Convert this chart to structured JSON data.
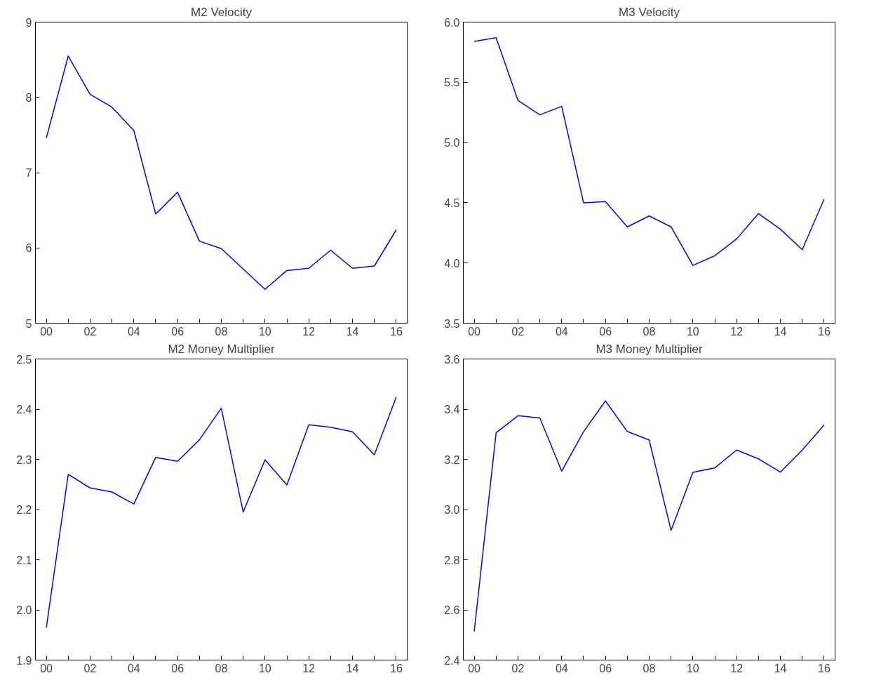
{
  "chart_data": [
    {
      "type": "line",
      "title": "M2 Velocity",
      "x": [
        0,
        1,
        2,
        3,
        4,
        5,
        6,
        7,
        8,
        9,
        10,
        11,
        12,
        13,
        14,
        15,
        16
      ],
      "series": [
        {
          "color": "#0000ff",
          "values": [
            7.46,
            8.55,
            8.04,
            7.87,
            7.56,
            6.45,
            6.74,
            6.09,
            5.99,
            5.72,
            5.45,
            5.7,
            5.73,
            5.97,
            5.73,
            5.76,
            6.24
          ]
        }
      ],
      "xlim": [
        -0.5,
        16.5
      ],
      "xticks": [
        {
          "value": 0,
          "label": "00"
        },
        {
          "value": 1,
          "label": null
        },
        {
          "value": 2,
          "label": "02"
        },
        {
          "value": 3,
          "label": null
        },
        {
          "value": 4,
          "label": "04"
        },
        {
          "value": 5,
          "label": null
        },
        {
          "value": 6,
          "label": "06"
        },
        {
          "value": 7,
          "label": null
        },
        {
          "value": 8,
          "label": "08"
        },
        {
          "value": 9,
          "label": null
        },
        {
          "value": 10,
          "label": "10"
        },
        {
          "value": 11,
          "label": null
        },
        {
          "value": 12,
          "label": "12"
        },
        {
          "value": 13,
          "label": null
        },
        {
          "value": 14,
          "label": "14"
        },
        {
          "value": 15,
          "label": null
        },
        {
          "value": 16,
          "label": "16"
        }
      ],
      "ylim": [
        5,
        9
      ],
      "yticks": [
        5,
        6,
        7,
        8,
        9
      ],
      "grid": false
    },
    {
      "type": "line",
      "title": "M3 Velocity",
      "x": [
        0,
        1,
        2,
        3,
        4,
        5,
        6,
        7,
        8,
        9,
        10,
        11,
        12,
        13,
        14,
        15,
        16
      ],
      "series": [
        {
          "color": "#0000ff",
          "values": [
            5.84,
            5.87,
            5.35,
            5.23,
            5.3,
            4.5,
            4.51,
            4.3,
            4.39,
            4.3,
            3.98,
            4.06,
            4.2,
            4.41,
            4.28,
            4.11,
            4.53
          ]
        }
      ],
      "xlim": [
        -0.5,
        16.5
      ],
      "xticks": [
        {
          "value": 0,
          "label": "00"
        },
        {
          "value": 1,
          "label": null
        },
        {
          "value": 2,
          "label": "02"
        },
        {
          "value": 3,
          "label": null
        },
        {
          "value": 4,
          "label": "04"
        },
        {
          "value": 5,
          "label": null
        },
        {
          "value": 6,
          "label": "06"
        },
        {
          "value": 7,
          "label": null
        },
        {
          "value": 8,
          "label": "08"
        },
        {
          "value": 9,
          "label": null
        },
        {
          "value": 10,
          "label": "10"
        },
        {
          "value": 11,
          "label": null
        },
        {
          "value": 12,
          "label": "12"
        },
        {
          "value": 13,
          "label": null
        },
        {
          "value": 14,
          "label": "14"
        },
        {
          "value": 15,
          "label": null
        },
        {
          "value": 16,
          "label": "16"
        }
      ],
      "ylim": [
        3.5,
        6.0
      ],
      "yticks": [
        {
          "value": 3.5,
          "label": "3.5"
        },
        {
          "value": 4.0,
          "label": "4.0"
        },
        {
          "value": 4.5,
          "label": "4.5"
        },
        {
          "value": 5.0,
          "label": "5.0"
        },
        {
          "value": 5.5,
          "label": "5.5"
        },
        {
          "value": 6.0,
          "label": "6.0"
        }
      ],
      "grid": false
    },
    {
      "type": "line",
      "title": "M2 Money Multiplier",
      "x": [
        0,
        1,
        2,
        3,
        4,
        5,
        6,
        7,
        8,
        9,
        10,
        11,
        12,
        13,
        14,
        15,
        16
      ],
      "series": [
        {
          "color": "#0000ff",
          "values": [
            1.965,
            2.27,
            2.243,
            2.235,
            2.211,
            2.304,
            2.296,
            2.339,
            2.402,
            2.195,
            2.299,
            2.249,
            2.369,
            2.364,
            2.355,
            2.309,
            2.424
          ]
        }
      ],
      "xlim": [
        -0.5,
        16.5
      ],
      "xticks": [
        {
          "value": 0,
          "label": "00"
        },
        {
          "value": 1,
          "label": null
        },
        {
          "value": 2,
          "label": "02"
        },
        {
          "value": 3,
          "label": null
        },
        {
          "value": 4,
          "label": "04"
        },
        {
          "value": 5,
          "label": null
        },
        {
          "value": 6,
          "label": "06"
        },
        {
          "value": 7,
          "label": null
        },
        {
          "value": 8,
          "label": "08"
        },
        {
          "value": 9,
          "label": null
        },
        {
          "value": 10,
          "label": "10"
        },
        {
          "value": 11,
          "label": null
        },
        {
          "value": 12,
          "label": "12"
        },
        {
          "value": 13,
          "label": null
        },
        {
          "value": 14,
          "label": "14"
        },
        {
          "value": 15,
          "label": null
        },
        {
          "value": 16,
          "label": "16"
        }
      ],
      "ylim": [
        1.9,
        2.5
      ],
      "yticks": [
        1.9,
        {
          "value": 2.0,
          "label": "2.0"
        },
        2.1,
        2.2,
        2.3,
        2.4,
        2.5
      ],
      "grid": false
    },
    {
      "type": "line",
      "title": "M3 Money Multiplier",
      "x": [
        0,
        1,
        2,
        3,
        4,
        5,
        6,
        7,
        8,
        9,
        10,
        11,
        12,
        13,
        14,
        15,
        16
      ],
      "series": [
        {
          "color": "#0000ff",
          "values": [
            2.514,
            3.306,
            3.374,
            3.365,
            3.153,
            3.31,
            3.433,
            3.311,
            3.277,
            2.917,
            3.148,
            3.166,
            3.237,
            3.202,
            3.149,
            3.237,
            3.337
          ]
        }
      ],
      "xlim": [
        -0.5,
        16.5
      ],
      "xticks": [
        {
          "value": 0,
          "label": "00"
        },
        {
          "value": 1,
          "label": null
        },
        {
          "value": 2,
          "label": "02"
        },
        {
          "value": 3,
          "label": null
        },
        {
          "value": 4,
          "label": "04"
        },
        {
          "value": 5,
          "label": null
        },
        {
          "value": 6,
          "label": "06"
        },
        {
          "value": 7,
          "label": null
        },
        {
          "value": 8,
          "label": "08"
        },
        {
          "value": 9,
          "label": null
        },
        {
          "value": 10,
          "label": "10"
        },
        {
          "value": 11,
          "label": null
        },
        {
          "value": 12,
          "label": "12"
        },
        {
          "value": 13,
          "label": null
        },
        {
          "value": 14,
          "label": "14"
        },
        {
          "value": 15,
          "label": null
        },
        {
          "value": 16,
          "label": "16"
        }
      ],
      "ylim": [
        2.4,
        3.6
      ],
      "yticks": [
        2.4,
        2.6,
        2.8,
        {
          "value": 3.0,
          "label": "3.0"
        },
        3.2,
        3.4,
        3.6
      ],
      "grid": false
    }
  ]
}
